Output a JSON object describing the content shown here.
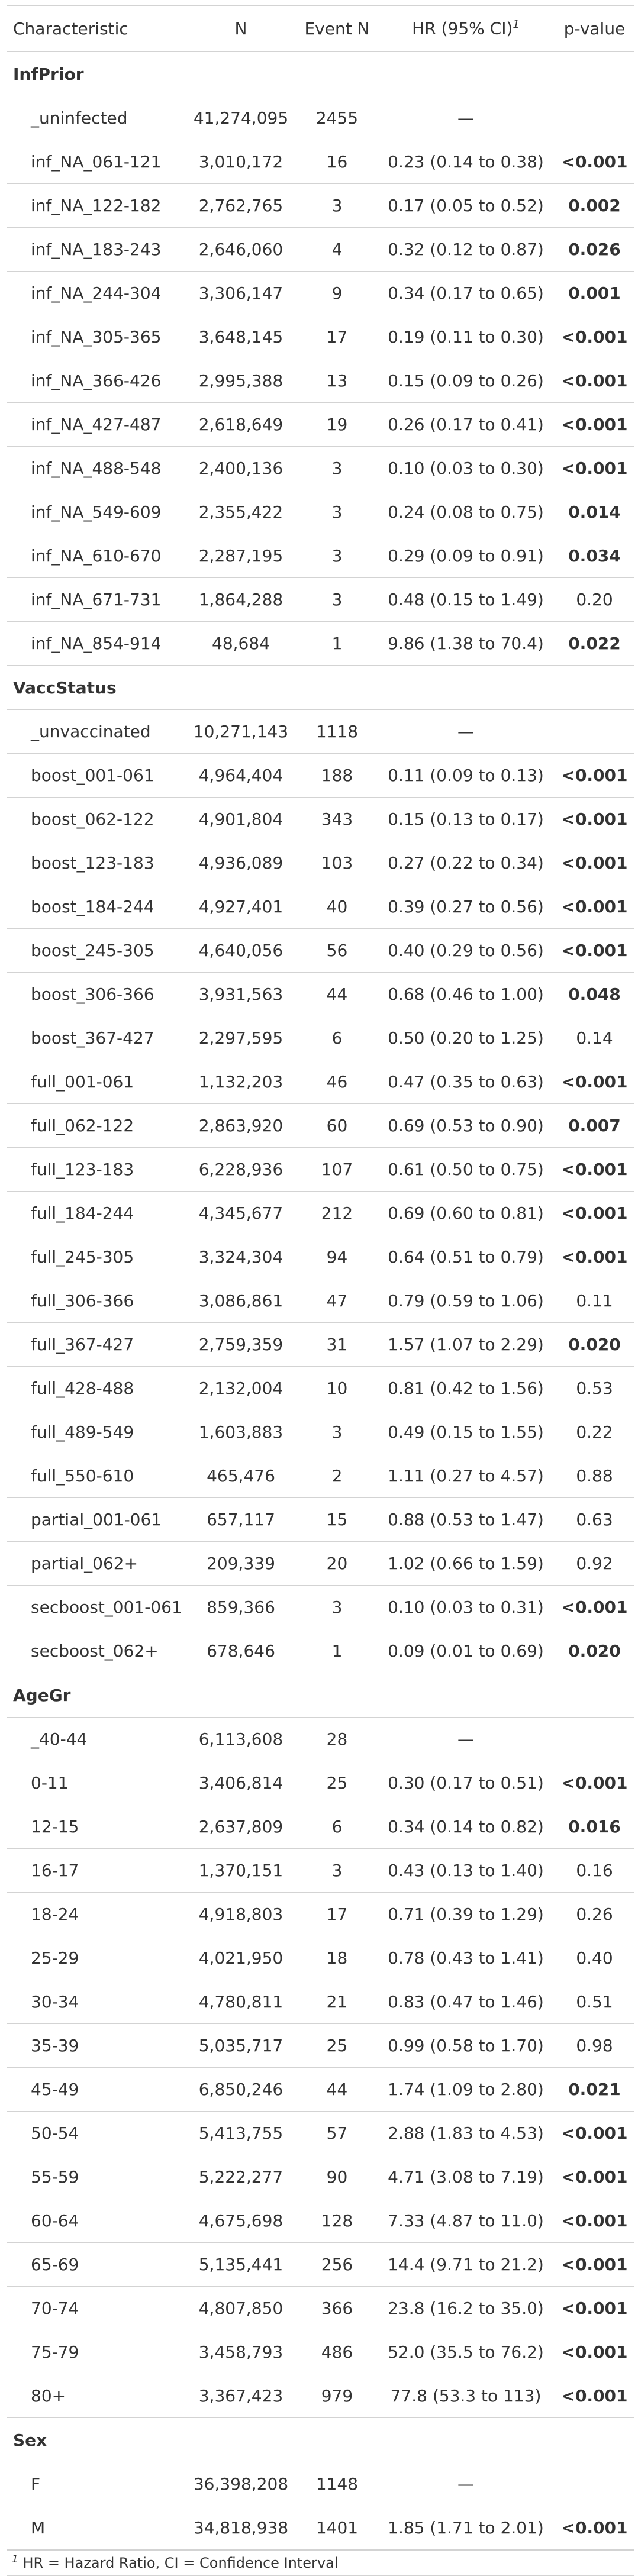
{
  "table": {
    "headers": {
      "characteristic": "Characteristic",
      "n": "N",
      "event_n": "Event N",
      "hr": "HR (95% CI)",
      "hr_sup": "1",
      "p": "p-value"
    },
    "groups": [
      {
        "label": "InfPrior",
        "rows": [
          [
            "_uninfected",
            "41,274,095",
            "2455",
            "—",
            ""
          ],
          [
            "inf_NA_061-121",
            "3,010,172",
            "16",
            "0.23 (0.14 to 0.38)",
            "<0.001"
          ],
          [
            "inf_NA_122-182",
            "2,762,765",
            "3",
            "0.17 (0.05 to 0.52)",
            "0.002"
          ],
          [
            "inf_NA_183-243",
            "2,646,060",
            "4",
            "0.32 (0.12 to 0.87)",
            "0.026"
          ],
          [
            "inf_NA_244-304",
            "3,306,147",
            "9",
            "0.34 (0.17 to 0.65)",
            "0.001"
          ],
          [
            "inf_NA_305-365",
            "3,648,145",
            "17",
            "0.19 (0.11 to 0.30)",
            "<0.001"
          ],
          [
            "inf_NA_366-426",
            "2,995,388",
            "13",
            "0.15 (0.09 to 0.26)",
            "<0.001"
          ],
          [
            "inf_NA_427-487",
            "2,618,649",
            "19",
            "0.26 (0.17 to 0.41)",
            "<0.001"
          ],
          [
            "inf_NA_488-548",
            "2,400,136",
            "3",
            "0.10 (0.03 to 0.30)",
            "<0.001"
          ],
          [
            "inf_NA_549-609",
            "2,355,422",
            "3",
            "0.24 (0.08 to 0.75)",
            "0.014"
          ],
          [
            "inf_NA_610-670",
            "2,287,195",
            "3",
            "0.29 (0.09 to 0.91)",
            "0.034"
          ],
          [
            "inf_NA_671-731",
            "1,864,288",
            "3",
            "0.48 (0.15 to 1.49)",
            "0.20"
          ],
          [
            "inf_NA_854-914",
            "48,684",
            "1",
            "9.86 (1.38 to 70.4)",
            "0.022"
          ]
        ]
      },
      {
        "label": "VaccStatus",
        "rows": [
          [
            "_unvaccinated",
            "10,271,143",
            "1118",
            "—",
            ""
          ],
          [
            "boost_001-061",
            "4,964,404",
            "188",
            "0.11 (0.09 to 0.13)",
            "<0.001"
          ],
          [
            "boost_062-122",
            "4,901,804",
            "343",
            "0.15 (0.13 to 0.17)",
            "<0.001"
          ],
          [
            "boost_123-183",
            "4,936,089",
            "103",
            "0.27 (0.22 to 0.34)",
            "<0.001"
          ],
          [
            "boost_184-244",
            "4,927,401",
            "40",
            "0.39 (0.27 to 0.56)",
            "<0.001"
          ],
          [
            "boost_245-305",
            "4,640,056",
            "56",
            "0.40 (0.29 to 0.56)",
            "<0.001"
          ],
          [
            "boost_306-366",
            "3,931,563",
            "44",
            "0.68 (0.46 to 1.00)",
            "0.048"
          ],
          [
            "boost_367-427",
            "2,297,595",
            "6",
            "0.50 (0.20 to 1.25)",
            "0.14"
          ],
          [
            "full_001-061",
            "1,132,203",
            "46",
            "0.47 (0.35 to 0.63)",
            "<0.001"
          ],
          [
            "full_062-122",
            "2,863,920",
            "60",
            "0.69 (0.53 to 0.90)",
            "0.007"
          ],
          [
            "full_123-183",
            "6,228,936",
            "107",
            "0.61 (0.50 to 0.75)",
            "<0.001"
          ],
          [
            "full_184-244",
            "4,345,677",
            "212",
            "0.69 (0.60 to 0.81)",
            "<0.001"
          ],
          [
            "full_245-305",
            "3,324,304",
            "94",
            "0.64 (0.51 to 0.79)",
            "<0.001"
          ],
          [
            "full_306-366",
            "3,086,861",
            "47",
            "0.79 (0.59 to 1.06)",
            "0.11"
          ],
          [
            "full_367-427",
            "2,759,359",
            "31",
            "1.57 (1.07 to 2.29)",
            "0.020"
          ],
          [
            "full_428-488",
            "2,132,004",
            "10",
            "0.81 (0.42 to 1.56)",
            "0.53"
          ],
          [
            "full_489-549",
            "1,603,883",
            "3",
            "0.49 (0.15 to 1.55)",
            "0.22"
          ],
          [
            "full_550-610",
            "465,476",
            "2",
            "1.11 (0.27 to 4.57)",
            "0.88"
          ],
          [
            "partial_001-061",
            "657,117",
            "15",
            "0.88 (0.53 to 1.47)",
            "0.63"
          ],
          [
            "partial_062+",
            "209,339",
            "20",
            "1.02 (0.66 to 1.59)",
            "0.92"
          ],
          [
            "secboost_001-061",
            "859,366",
            "3",
            "0.10 (0.03 to 0.31)",
            "<0.001"
          ],
          [
            "secboost_062+",
            "678,646",
            "1",
            "0.09 (0.01 to 0.69)",
            "0.020"
          ]
        ]
      },
      {
        "label": "AgeGr",
        "rows": [
          [
            "_40-44",
            "6,113,608",
            "28",
            "—",
            ""
          ],
          [
            "0-11",
            "3,406,814",
            "25",
            "0.30 (0.17 to 0.51)",
            "<0.001"
          ],
          [
            "12-15",
            "2,637,809",
            "6",
            "0.34 (0.14 to 0.82)",
            "0.016"
          ],
          [
            "16-17",
            "1,370,151",
            "3",
            "0.43 (0.13 to 1.40)",
            "0.16"
          ],
          [
            "18-24",
            "4,918,803",
            "17",
            "0.71 (0.39 to 1.29)",
            "0.26"
          ],
          [
            "25-29",
            "4,021,950",
            "18",
            "0.78 (0.43 to 1.41)",
            "0.40"
          ],
          [
            "30-34",
            "4,780,811",
            "21",
            "0.83 (0.47 to 1.46)",
            "0.51"
          ],
          [
            "35-39",
            "5,035,717",
            "25",
            "0.99 (0.58 to 1.70)",
            "0.98"
          ],
          [
            "45-49",
            "6,850,246",
            "44",
            "1.74 (1.09 to 2.80)",
            "0.021"
          ],
          [
            "50-54",
            "5,413,755",
            "57",
            "2.88 (1.83 to 4.53)",
            "<0.001"
          ],
          [
            "55-59",
            "5,222,277",
            "90",
            "4.71 (3.08 to 7.19)",
            "<0.001"
          ],
          [
            "60-64",
            "4,675,698",
            "128",
            "7.33 (4.87 to 11.0)",
            "<0.001"
          ],
          [
            "65-69",
            "5,135,441",
            "256",
            "14.4 (9.71 to 21.2)",
            "<0.001"
          ],
          [
            "70-74",
            "4,807,850",
            "366",
            "23.8 (16.2 to 35.0)",
            "<0.001"
          ],
          [
            "75-79",
            "3,458,793",
            "486",
            "52.0 (35.5 to 76.2)",
            "<0.001"
          ],
          [
            "80+",
            "3,367,423",
            "979",
            "77.8 (53.3 to 113)",
            "<0.001"
          ]
        ]
      },
      {
        "label": "Sex",
        "rows": [
          [
            "F",
            "36,398,208",
            "1148",
            "—",
            ""
          ],
          [
            "M",
            "34,818,938",
            "1401",
            "1.85 (1.71 to 2.01)",
            "<0.001"
          ]
        ]
      }
    ],
    "footnote": {
      "marker": "1",
      "text": "HR = Hazard Ratio, CI = Confidence Interval"
    }
  }
}
